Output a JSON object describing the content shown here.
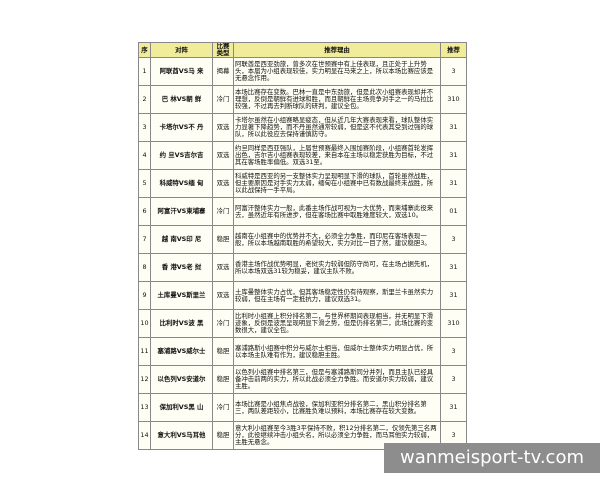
{
  "table": {
    "headers": [
      "序",
      "对阵",
      "比赛类型",
      "推荐理由",
      "推荐"
    ],
    "rows": [
      [
        "1",
        "阿联酋VS马 来",
        "揭幕",
        "阿联酋是西亚劲旅，曾多次在世预赛中有上佳表现，且正处于上升势头，本届为小组表现较佳，实力明显在马来之上，所以本场比赛应该是无悬念作用。",
        "3"
      ],
      [
        "2",
        "巴 林VS朝 鲜",
        "冷门",
        "本场比赛存在变数。巴林一直是中东劲旅，但是此次小组赛表现却并不理想，反倒是朝鲜有进球和胜，而且朝鲜在主场竞争对手之一的马拉比较强，不过再去判断球队的研判，建议全包。",
        "310"
      ],
      [
        "3",
        "卡塔尔VS不 丹",
        "双选",
        "卡塔尔虽然在小组赛略显疲态，但从近几年大赛表现来看，球队整体实力显著下降趋势，而不丹虽然通常较弱，但是这不代表其受到过强的球队，所以此役应去保持谨慎防守。",
        "31"
      ],
      [
        "4",
        "约 旦VS吉尔吉",
        "双选",
        "约旦同样是西亚强队，上届世预赛最终入围加赛阶段，小组赛首轮发挥出色，吉尔吉小组赛表现较差，来自本在主场以稳定获胜为目标，不过其在客场胜率偏低。双选31至。",
        "31"
      ],
      [
        "5",
        "科威特VS缅 甸",
        "双选",
        "科威特是西亚的另一支整体实力呈现明显下滑的球队，首轮虽然战胜，但主要原因是对手实力太弱，缅甸在小组赛中已有数战最终未战胜，所以此战保持一手平局。",
        "31"
      ],
      [
        "6",
        "阿富汗VS柬埔寨",
        "冷门",
        "阿富汗整体实力一般，此番主场作战可视为一大优势，而柬埔寨此役来去，虽然近年有所进步，但在客场比赛中取胜难度较大，双选10。",
        "01"
      ],
      [
        "7",
        "越 南VS印 尼",
        "稳胆",
        "越南在小组赛中的优势并不大，必须全力争胜，而印尼在客场表现一般，所以本场越南取胜的希望较大，实力对比一目了然，建议稳胆3。",
        "3"
      ],
      [
        "8",
        "香 港VS老 挝",
        "双选",
        "香港主场作战优势明显，老挝实力较弱但防守尚可，在主场占据先机，所以本场双选31较为稳妥，建议主队不败。",
        "31"
      ],
      [
        "9",
        "土库曼VS斯里兰",
        "双选",
        "土库曼整体实力占优，但其客场稳定性仍有待观察，斯里兰卡虽然实力较弱，但在主场有一定抵抗力，建议双选31。",
        "31"
      ],
      [
        "10",
        "比利时VS波 黑",
        "冷门",
        "比利时小组赛上积分排名第二，与世界杯期间表现相当，并无明显下滑迹象，反倒是波黑呈现明显下滑之势，但是仍排名第二，此场比赛的变数很大，建议全包。",
        "310"
      ],
      [
        "11",
        "塞浦路VS威尔士",
        "稳胆",
        "塞浦路斯小组赛中积分与威尔士相当，但威尔士整体实力明显占优，所以本场主队难有作为，建议稳胆主胜。",
        "3"
      ],
      [
        "12",
        "以色列VS安道尔",
        "稳胆",
        "以色列小组赛中排名第三，但是与塞浦路斯同分并列，而且主队已经具备冲击前两的实力，所以此战必须全力争胜。而安道尔实力较弱，建议主胜。",
        "3"
      ],
      [
        "13",
        "保加利VS黑 山",
        "冷门",
        "本场比赛是小组焦点战役，保加利亚积分排名第二，黑山积分排名第三，两队差距较小，比赛胜负难以预料，本场比赛存在较大变数。",
        "31"
      ],
      [
        "14",
        "意大利VS马耳他",
        "稳胆",
        "意大利小组赛至今3胜3平保持不败，积12分排名第二，仅领先第三名两分，此役继续冲击小组头名，所以必须全力争胜，而马耳他实力较弱，主胜无悬念。",
        "3"
      ]
    ]
  },
  "watermark": "wanmeisport-tv.com"
}
